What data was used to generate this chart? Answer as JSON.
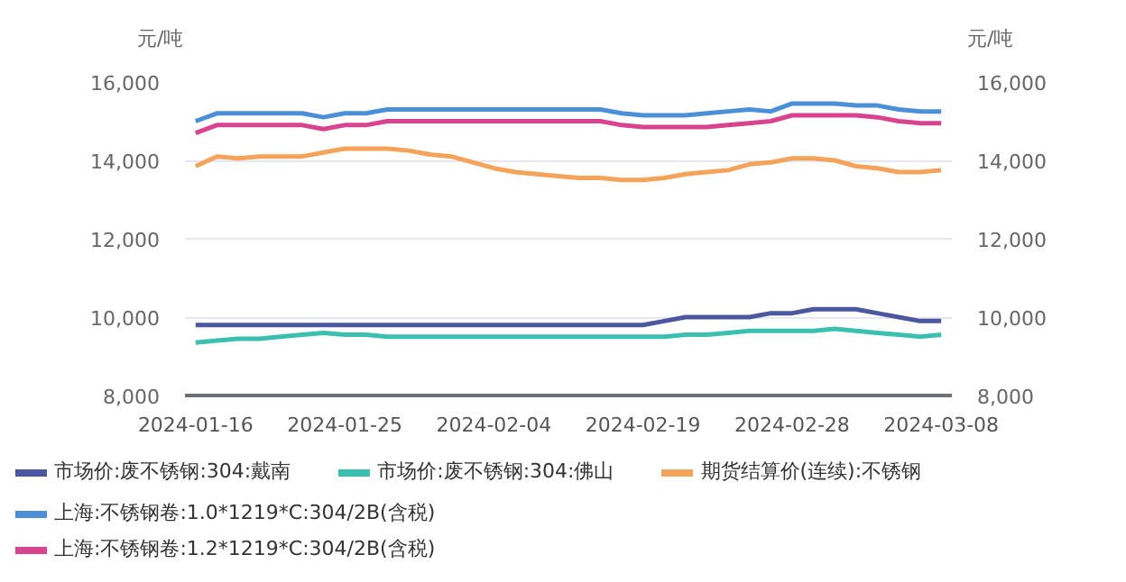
{
  "chart_data": {
    "type": "line",
    "ylabel": "元/吨",
    "y2label": "元/吨",
    "categories": [
      "2024-01-16",
      null,
      null,
      null,
      null,
      null,
      null,
      "2024-01-25",
      null,
      null,
      null,
      null,
      null,
      null,
      "2024-02-04",
      null,
      null,
      null,
      null,
      null,
      null,
      "2024-02-19",
      null,
      null,
      null,
      null,
      null,
      null,
      "2024-02-28",
      null,
      null,
      null,
      null,
      null,
      null,
      "2024-03-08"
    ],
    "ylim": [
      8000,
      16000
    ],
    "yticks": [
      {
        "value": 8000,
        "label": "8,000"
      },
      {
        "value": 10000,
        "label": "10,000"
      },
      {
        "value": 12000,
        "label": "12,000"
      },
      {
        "value": 14000,
        "label": "14,000"
      },
      {
        "value": 16000,
        "label": "16,000"
      }
    ],
    "y2lim": [
      8000,
      16000
    ],
    "y2ticks": [
      {
        "value": 8000,
        "label": "8,000"
      },
      {
        "value": 10000,
        "label": "10,000"
      },
      {
        "value": 12000,
        "label": "12,000"
      },
      {
        "value": 14000,
        "label": "14,000"
      },
      {
        "value": 16000,
        "label": "16,000"
      }
    ],
    "grid": "y",
    "legend": "bottom",
    "marker": "none",
    "line_style": "solid",
    "series": [
      {
        "name": "市场价:废不锈钢:304:戴南",
        "color": "#4b579e",
        "values": [
          9800,
          9800,
          9800,
          9800,
          9800,
          9800,
          9800,
          9800,
          9800,
          9800,
          9800,
          9800,
          9800,
          9800,
          9800,
          9800,
          9800,
          9800,
          9800,
          9800,
          9800,
          9800,
          9900,
          10000,
          10000,
          10000,
          10000,
          10100,
          10100,
          10200,
          10200,
          10200,
          10100,
          10000,
          9900,
          9900
        ]
      },
      {
        "name": "市场价:废不锈钢:304:佛山",
        "color": "#3bbfb0",
        "values": [
          9350,
          9400,
          9450,
          9450,
          9500,
          9550,
          9600,
          9550,
          9550,
          9500,
          9500,
          9500,
          9500,
          9500,
          9500,
          9500,
          9500,
          9500,
          9500,
          9500,
          9500,
          9500,
          9500,
          9550,
          9550,
          9600,
          9650,
          9650,
          9650,
          9650,
          9700,
          9650,
          9600,
          9550,
          9500,
          9550
        ]
      },
      {
        "name": "期货结算价(连续):不锈钢",
        "color": "#f4a35a",
        "values": [
          13850,
          14100,
          14050,
          14100,
          14100,
          14100,
          14200,
          14300,
          14300,
          14300,
          14250,
          14150,
          14100,
          13950,
          13800,
          13700,
          13650,
          13600,
          13550,
          13550,
          13500,
          13500,
          13550,
          13650,
          13700,
          13750,
          13900,
          13950,
          14050,
          14050,
          14000,
          13850,
          13800,
          13700,
          13700,
          13750
        ]
      },
      {
        "name": "上海:不锈钢卷:1.0*1219*C:304/2B(含税)",
        "color": "#4a8fd8",
        "values": [
          15000,
          15200,
          15200,
          15200,
          15200,
          15200,
          15100,
          15200,
          15200,
          15300,
          15300,
          15300,
          15300,
          15300,
          15300,
          15300,
          15300,
          15300,
          15300,
          15300,
          15200,
          15150,
          15150,
          15150,
          15200,
          15250,
          15300,
          15250,
          15450,
          15450,
          15450,
          15400,
          15400,
          15300,
          15250,
          15250
        ]
      },
      {
        "name": "上海:不锈钢卷:1.2*1219*C:304/2B(含税)",
        "color": "#d9428f",
        "values": [
          14700,
          14900,
          14900,
          14900,
          14900,
          14900,
          14800,
          14900,
          14900,
          15000,
          15000,
          15000,
          15000,
          15000,
          15000,
          15000,
          15000,
          15000,
          15000,
          15000,
          14900,
          14850,
          14850,
          14850,
          14850,
          14900,
          14950,
          15000,
          15150,
          15150,
          15150,
          15150,
          15100,
          15000,
          14950,
          14950
        ]
      }
    ]
  }
}
